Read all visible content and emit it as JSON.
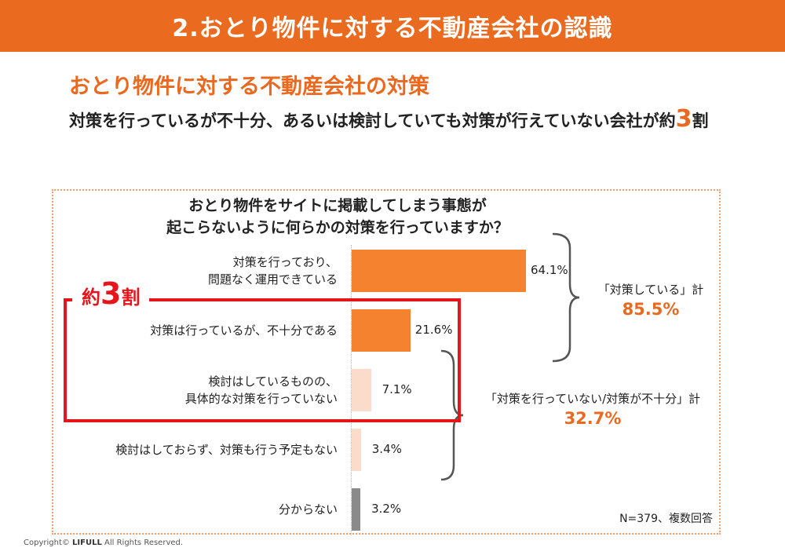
{
  "header": {
    "title": "2.おとり物件に対する不動産会社の認識"
  },
  "headline": "おとり物件に対する不動産会社の対策",
  "subtitle": {
    "text": "対策を行っているが不十分、あるいは検討していても対策が行えていない会社が約",
    "number": "3",
    "suffix": "割"
  },
  "callout": {
    "prefix": "約",
    "number": "3",
    "suffix": "割"
  },
  "groups": {
    "doing": {
      "label": "「対策している」計",
      "value": "85.5%"
    },
    "not_enough": {
      "label": "「対策を行っていない/対策が不十分」計",
      "value": "32.7%"
    }
  },
  "footnote": "N=379、複数回答",
  "copyright": {
    "prefix": "Copyright© ",
    "brand": "LIFULL",
    "suffix": " All Rights Reserved."
  },
  "colors": {
    "accent": "#e8691f",
    "bar_strong": "#f5822f",
    "bar_light": "#fbdccb",
    "bar_gray": "#8a8a8a",
    "highlight": "#e8141b"
  },
  "chart_data": {
    "type": "bar",
    "orientation": "horizontal",
    "title_lines": [
      "おとり物件をサイトに掲載してしまう事態が",
      "起こらないように何らかの対策を行っていますか？"
    ],
    "categories": [
      [
        "対策を行っており、",
        "問題なく運用できている"
      ],
      [
        "対策は行っているが、不十分である"
      ],
      [
        "検討はしているものの、",
        "具体的な対策を行っていない"
      ],
      [
        "検討はしておらず、対策も行う予定もない"
      ],
      [
        "分からない"
      ]
    ],
    "values": [
      64.1,
      21.6,
      7.1,
      3.4,
      3.2
    ],
    "value_labels": [
      "64.1%",
      "21.6%",
      "7.1%",
      "3.4%",
      "3.2%"
    ],
    "unit": "%",
    "bar_colors": [
      "#f5822f",
      "#f5822f",
      "#fbdccb",
      "#fbdccb",
      "#8a8a8a"
    ],
    "grid": false,
    "legend": "none"
  }
}
